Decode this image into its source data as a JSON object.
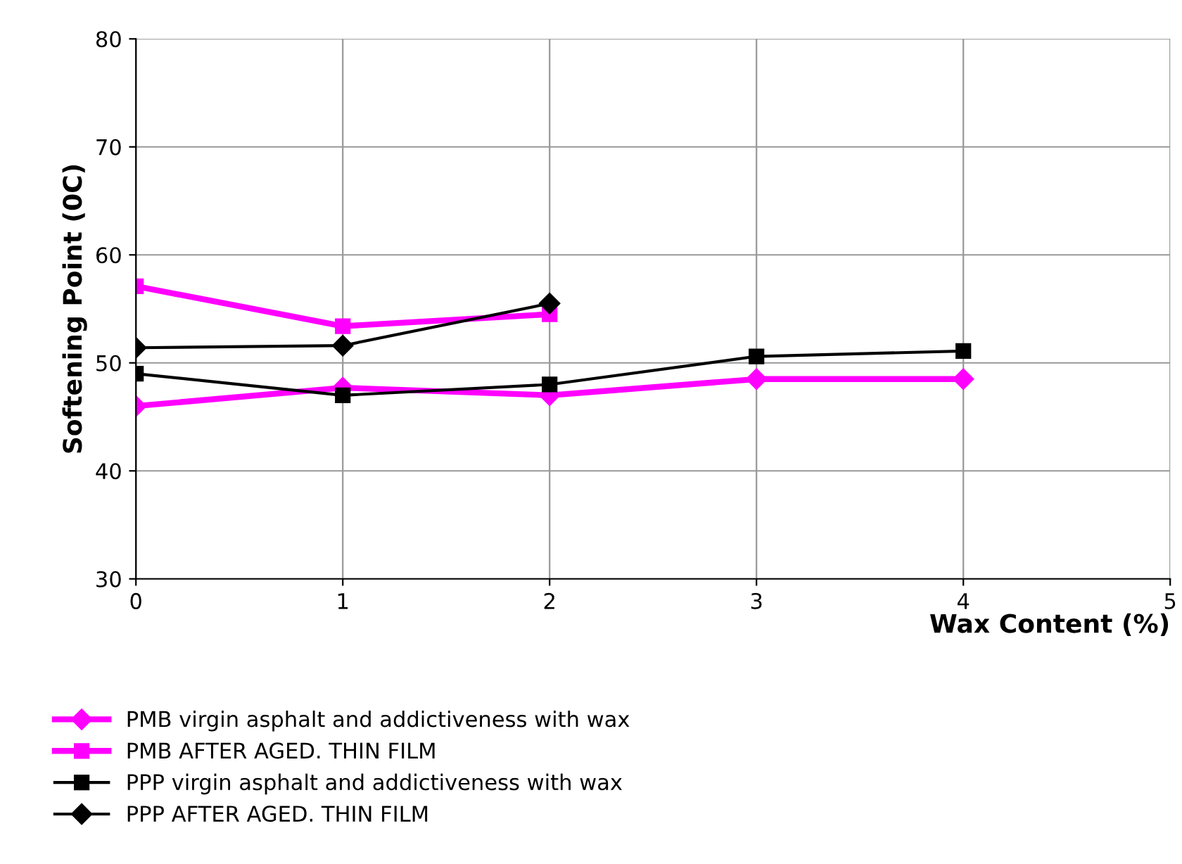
{
  "chart_data": {
    "type": "line",
    "ylabel": "Softening Point (0C)",
    "xlabel": "Wax Content (%)",
    "xlim": [
      0,
      5
    ],
    "xticks": [
      0,
      1,
      2,
      3,
      4,
      5
    ],
    "ylim": [
      30,
      80
    ],
    "yticks": [
      30,
      40,
      50,
      60,
      70,
      80
    ],
    "grid": true,
    "legend": "bottom",
    "series": [
      {
        "name": "PMB virgin asphalt and addictiveness with wax",
        "color": "#ff00ff",
        "marker": "diamond",
        "x": [
          0,
          1,
          2,
          3,
          4
        ],
        "values": [
          46.0,
          47.7,
          47.0,
          48.5,
          48.5
        ]
      },
      {
        "name": "PMB AFTER AGED. THIN FILM",
        "color": "#ff00ff",
        "marker": "square",
        "x": [
          0,
          1,
          2
        ],
        "values": [
          57.1,
          53.4,
          54.5
        ]
      },
      {
        "name": "PPP virgin asphalt and addictiveness with wax",
        "color": "#000000",
        "marker": "square",
        "x": [
          0,
          1,
          2,
          3,
          4
        ],
        "values": [
          49.0,
          47.0,
          48.0,
          50.6,
          51.1
        ]
      },
      {
        "name": "PPP AFTER AGED. THIN FILM",
        "color": "#000000",
        "marker": "diamond",
        "x": [
          0,
          1,
          2
        ],
        "values": [
          51.4,
          51.6,
          55.5
        ]
      }
    ]
  }
}
